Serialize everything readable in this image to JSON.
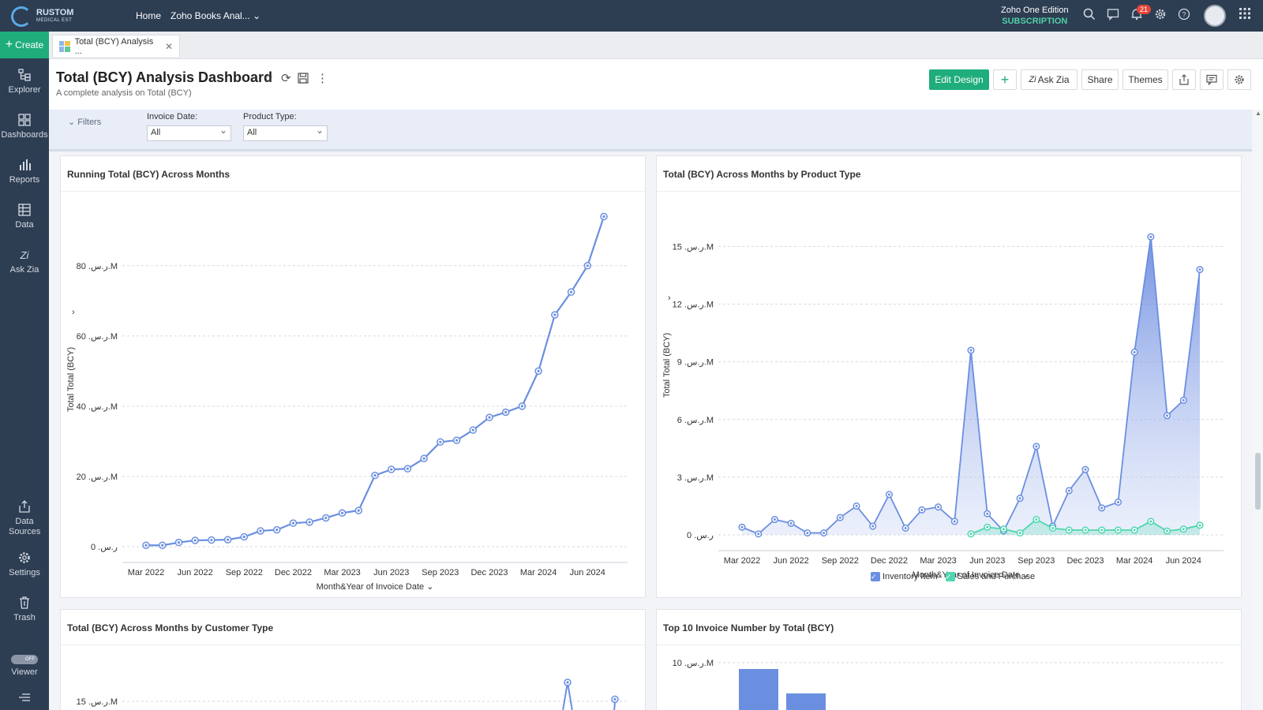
{
  "topbar": {
    "logo_text": "RUSTOM",
    "logo_sub": "MEDICAL EST",
    "nav_home": "Home",
    "nav_workspace": "Zoho Books Anal...",
    "edition": "Zoho One Edition",
    "subscription": "SUBSCRIPTION",
    "notification_count": "21"
  },
  "rail": {
    "create": "Create",
    "items": [
      "Explorer",
      "Dashboards",
      "Reports",
      "Data",
      "Ask Zia",
      "Data Sources",
      "Settings",
      "Trash",
      "Viewer"
    ],
    "viewer_toggle": "OFF"
  },
  "tab": {
    "label": "Total (BCY) Analysis ..."
  },
  "dashboard": {
    "title": "Total (BCY) Analysis Dashboard",
    "subtitle": "A complete analysis on Total (BCY)",
    "buttons": {
      "edit_design": "Edit Design",
      "add": "+",
      "ask_zia": "Ask Zia",
      "share": "Share",
      "themes": "Themes"
    }
  },
  "filters": {
    "label": "Filters",
    "invoice_date": {
      "label": "Invoice Date:",
      "value": "All"
    },
    "product_type": {
      "label": "Product Type:",
      "value": "All"
    }
  },
  "colors": {
    "topbar": "#2d3d52",
    "accent": "#1fad7c",
    "series_blue": "#6b8fe0",
    "series_teal": "#4fd6b0"
  },
  "chart_data": [
    {
      "type": "line",
      "title": "Running Total (BCY) Across Months",
      "xlabel": "Month&Year of Invoice Date",
      "ylabel": "Total Total (BCY)",
      "x_ticks": [
        "Mar 2022",
        "Jun 2022",
        "Sep 2022",
        "Dec 2022",
        "Mar 2023",
        "Jun 2023",
        "Sep 2023",
        "Dec 2023",
        "Mar 2024",
        "Jun 2024"
      ],
      "y_ticks": [
        "0 .ر.س",
        "20 .ر.س.M",
        "40 .ر.س.M",
        "60 .ر.س.M",
        "80 .ر.س.M"
      ],
      "ylim": [
        0,
        95
      ],
      "x": [
        "Mar 2022",
        "Apr 2022",
        "May 2022",
        "Jun 2022",
        "Jul 2022",
        "Aug 2022",
        "Sep 2022",
        "Oct 2022",
        "Nov 2022",
        "Dec 2022",
        "Jan 2023",
        "Feb 2023",
        "Mar 2023",
        "Apr 2023",
        "May 2023",
        "Jun 2023",
        "Jul 2023",
        "Aug 2023",
        "Sep 2023",
        "Oct 2023",
        "Nov 2023",
        "Dec 2023",
        "Jan 2024",
        "Feb 2024",
        "Mar 2024",
        "Apr 2024",
        "May 2024",
        "Jun 2024",
        "Jul 2024"
      ],
      "values": [
        0.4,
        0.4,
        1.2,
        1.8,
        1.9,
        2.0,
        2.8,
        4.5,
        4.8,
        6.7,
        7.0,
        8.2,
        9.6,
        10.3,
        20.3,
        22.0,
        22.2,
        25.1,
        29.8,
        30.3,
        33.2,
        36.8,
        38.3,
        40.0,
        50.0,
        66.0,
        72.5,
        80.0,
        94.0
      ]
    },
    {
      "type": "area",
      "title": "Total (BCY) Across Months by Product Type",
      "xlabel": "Month&Year of Invoice Date",
      "ylabel": "Total Total (BCY)",
      "x_ticks": [
        "Mar 2022",
        "Jun 2022",
        "Sep 2022",
        "Dec 2022",
        "Mar 2023",
        "Jun 2023",
        "Sep 2023",
        "Dec 2023",
        "Mar 2024",
        "Jun 2024"
      ],
      "y_ticks": [
        "0 .ر.س",
        "3 .ر.س.M",
        "6 .ر.س.M",
        "9 .ر.س.M",
        "12 .ر.س.M",
        "15 .ر.س.M"
      ],
      "ylim": [
        0,
        16
      ],
      "legend": "bottom",
      "x": [
        "Mar 2022",
        "Apr 2022",
        "May 2022",
        "Jun 2022",
        "Jul 2022",
        "Aug 2022",
        "Sep 2022",
        "Oct 2022",
        "Nov 2022",
        "Dec 2022",
        "Jan 2023",
        "Feb 2023",
        "Mar 2023",
        "Apr 2023",
        "May 2023",
        "Jun 2023",
        "Jul 2023",
        "Aug 2023",
        "Sep 2023",
        "Oct 2023",
        "Nov 2023",
        "Dec 2023",
        "Jan 2024",
        "Feb 2024",
        "Mar 2024",
        "Apr 2024",
        "May 2024",
        "Jun 2024",
        "Jul 2024"
      ],
      "series": [
        {
          "name": "Inventory Item",
          "values": [
            0.4,
            0.05,
            0.8,
            0.6,
            0.1,
            0.1,
            0.9,
            1.5,
            0.45,
            2.1,
            0.35,
            1.3,
            1.45,
            0.7,
            9.6,
            1.1,
            0.2,
            1.9,
            4.6,
            0.45,
            2.3,
            3.4,
            1.4,
            1.7,
            9.5,
            15.5,
            6.2,
            7.0,
            13.8
          ]
        },
        {
          "name": "Sales and Purchase",
          "values": [
            null,
            null,
            null,
            null,
            null,
            null,
            null,
            null,
            null,
            null,
            null,
            null,
            null,
            null,
            0.05,
            0.4,
            0.3,
            0.1,
            0.8,
            0.35,
            0.25,
            0.25,
            0.25,
            0.25,
            0.25,
            0.7,
            0.2,
            0.3,
            0.5
          ]
        }
      ]
    },
    {
      "type": "line",
      "title": "Total (BCY) Across Months by Customer Type",
      "y_ticks": [
        "15 .ر.س.M"
      ],
      "ylim": [
        0,
        18
      ]
    },
    {
      "type": "bar",
      "title": "Top 10 Invoice Number by Total (BCY)",
      "y_ticks": [
        "10 .ر.س.M"
      ],
      "ylim": [
        0,
        12
      ]
    }
  ]
}
